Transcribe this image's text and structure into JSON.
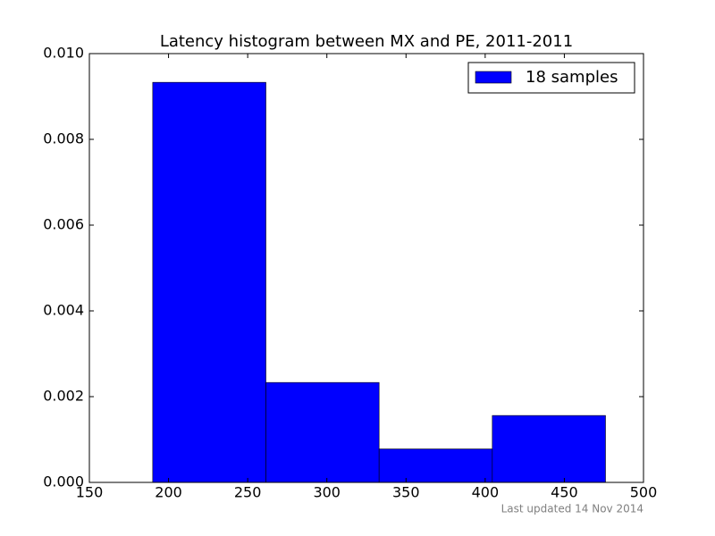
{
  "chart_data": {
    "type": "histogram",
    "title": "Latency histogram between MX and PE, 2011-2011",
    "footer": "Last updated 14 Nov 2014",
    "bins": [
      190,
      261.5,
      333,
      404.5,
      476
    ],
    "series": [
      {
        "name": "18 samples",
        "color": "#0000ff",
        "values": [
          0.00933,
          0.00233,
          0.00078,
          0.00156
        ]
      }
    ],
    "xlim": [
      150,
      500
    ],
    "xticks": [
      150,
      200,
      250,
      300,
      350,
      400,
      450,
      500
    ],
    "ylim": [
      0,
      0.01
    ],
    "yticks": [
      {
        "value": 0,
        "label": "0.000"
      },
      {
        "value": 0.002,
        "label": "0.002"
      },
      {
        "value": 0.004,
        "label": "0.004"
      },
      {
        "value": 0.006,
        "label": "0.006"
      },
      {
        "value": 0.008,
        "label": "0.008"
      },
      {
        "value": 0.01,
        "label": "0.010"
      }
    ],
    "legend": "upper right",
    "grid": false
  }
}
